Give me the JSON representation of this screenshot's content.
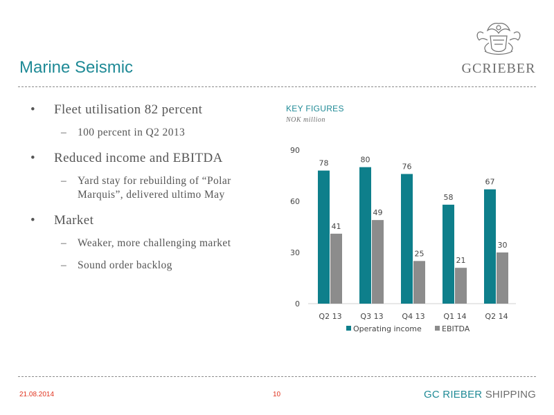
{
  "slide": {
    "title": "Marine Seismic",
    "logo_text": "GCRIEBER"
  },
  "bullets": [
    {
      "text": "Fleet utilisation 82 percent",
      "subs": [
        "100 percent in Q2 2013"
      ]
    },
    {
      "text": "Reduced income and EBITDA",
      "subs": [
        "Yard stay for rebuilding of “Polar Marquis”, delivered ultimo May"
      ]
    },
    {
      "text": "Market",
      "subs": [
        "Weaker, more challenging market",
        "Sound order backlog"
      ]
    }
  ],
  "bullet_symbol": "•",
  "sub_symbol": "–",
  "chart_data": {
    "type": "bar",
    "title": "KEY FIGURES",
    "subtitle": "NOK million",
    "categories": [
      "Q2 13",
      "Q3 13",
      "Q4 13",
      "Q1 14",
      "Q2 14"
    ],
    "series": [
      {
        "name": "Operating income",
        "values": [
          78,
          80,
          76,
          58,
          67
        ],
        "color": "#0e7f8b"
      },
      {
        "name": "EBITDA",
        "values": [
          41,
          49,
          25,
          21,
          30
        ],
        "color": "#8c8c8c"
      }
    ],
    "yticks": [
      0,
      30,
      60,
      90
    ],
    "ylim": [
      0,
      90
    ],
    "grid": false,
    "legend_position": "bottom"
  },
  "footer": {
    "date": "21.08.2014",
    "page": "10",
    "brand_part1": "GC RIEBER",
    "brand_part2": " SHIPPING"
  }
}
